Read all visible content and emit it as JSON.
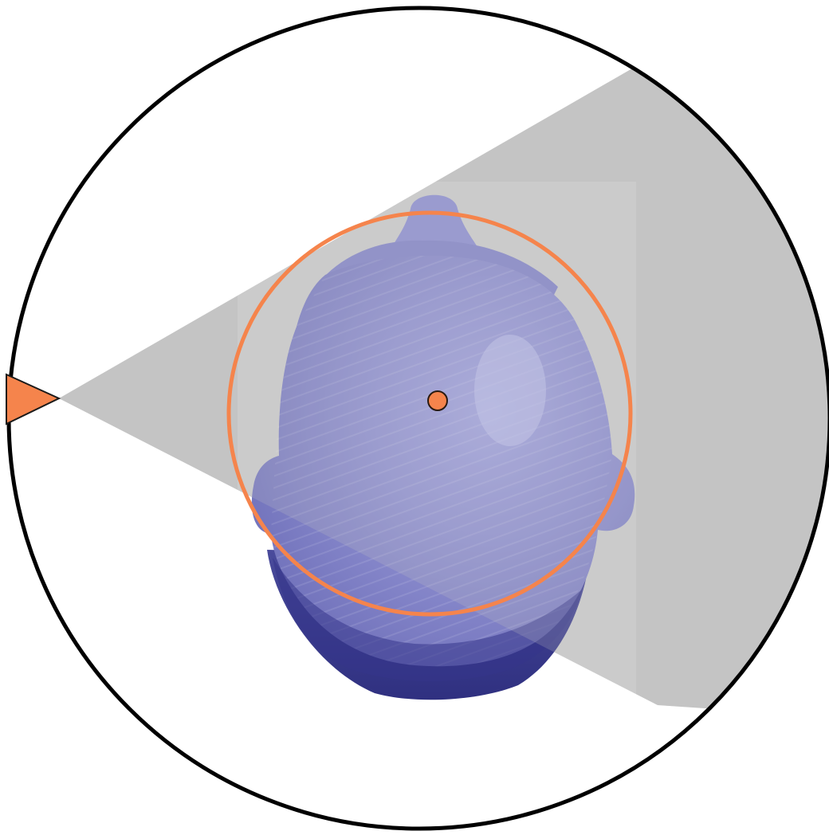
{
  "colors": {
    "background": "#ffffff",
    "outer_circle_stroke": "#000000",
    "view_cone_fill": "#c4c4c4",
    "head_surface_light": "#8e8fd0",
    "head_surface_mid": "#7f80c6",
    "head_surface_dark": "#3e3f8e",
    "target_accent": "#f5844c",
    "target_center_stroke": "#2a1a10",
    "camera_marker_fill": "#f5844c",
    "camera_marker_stroke": "#1a1a1a"
  },
  "icons": {
    "camera": "camera-triangle-icon",
    "target_center": "target-center-dot-icon"
  }
}
